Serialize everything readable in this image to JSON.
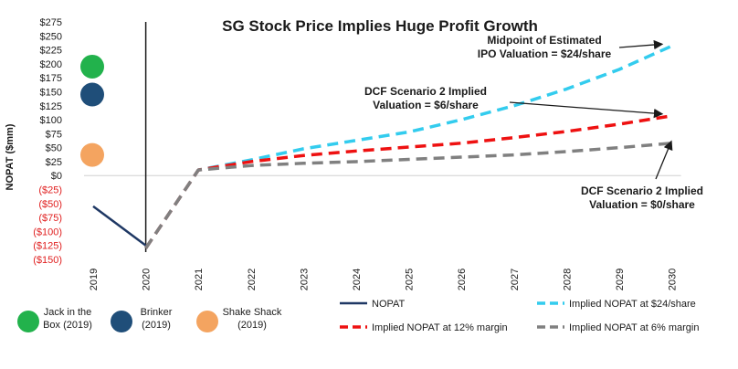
{
  "chart_data": {
    "type": "line",
    "title": "SG Stock Price Implies Huge Profit Growth",
    "ylabel": "NOPAT ($mm)",
    "xlabel": "",
    "x": [
      "2019",
      "2020",
      "2021",
      "2022",
      "2023",
      "2024",
      "2025",
      "2026",
      "2027",
      "2028",
      "2029",
      "2030"
    ],
    "ylim": [
      -150,
      275
    ],
    "yticks": [
      {
        "value": 275,
        "label": "$275"
      },
      {
        "value": 250,
        "label": "$250"
      },
      {
        "value": 225,
        "label": "$225"
      },
      {
        "value": 200,
        "label": "$200"
      },
      {
        "value": 175,
        "label": "$175"
      },
      {
        "value": 150,
        "label": "$150"
      },
      {
        "value": 125,
        "label": "$125"
      },
      {
        "value": 100,
        "label": "$100"
      },
      {
        "value": 75,
        "label": "$75"
      },
      {
        "value": 50,
        "label": "$50"
      },
      {
        "value": 25,
        "label": "$25"
      },
      {
        "value": 0,
        "label": "$0"
      },
      {
        "value": -25,
        "label": "($25)"
      },
      {
        "value": -50,
        "label": "($50)"
      },
      {
        "value": -75,
        "label": "($75)"
      },
      {
        "value": -100,
        "label": "($100)"
      },
      {
        "value": -125,
        "label": "($125)"
      },
      {
        "value": -150,
        "label": "($150)"
      }
    ],
    "series": [
      {
        "name": "NOPAT",
        "color": "#1f3864",
        "dash": "solid",
        "values": [
          -55,
          -125,
          null,
          null,
          null,
          null,
          null,
          null,
          null,
          null,
          null,
          null
        ]
      },
      {
        "name": "Implied NOPAT at $24/share",
        "color": "#33ccee",
        "dash": "dash",
        "values": [
          null,
          -130,
          10,
          28,
          48,
          63,
          78,
          100,
          125,
          155,
          190,
          232
        ]
      },
      {
        "name": "Implied NOPAT at 12% margin",
        "color": "#ee1111",
        "dash": "dash",
        "values": [
          null,
          -130,
          10,
          25,
          36,
          44,
          51,
          58,
          68,
          79,
          92,
          107
        ]
      },
      {
        "name": "Implied NOPAT at 6% margin",
        "color": "#808080",
        "dash": "dash",
        "values": [
          null,
          -130,
          10,
          18,
          22,
          25,
          29,
          33,
          37,
          43,
          50,
          58
        ]
      }
    ],
    "peers": [
      {
        "name": "Jack in the Box (2019)",
        "line1": "Jack in the",
        "line2": "Box (2019)",
        "value": 195,
        "color": "#22b24c"
      },
      {
        "name": "Brinker (2019)",
        "line1": "Brinker",
        "line2": "(2019)",
        "value": 145,
        "color": "#1f4e79"
      },
      {
        "name": "Shake Shack (2019)",
        "line1": "Shake Shack",
        "line2": "(2019)",
        "value": 37,
        "color": "#f4a460"
      }
    ],
    "annotations": [
      {
        "lines": [
          "Midpoint of Estimated",
          "IPO Valuation = $24/share"
        ],
        "x": "2030",
        "y": 232
      },
      {
        "lines": [
          "DCF Scenario 2 Implied",
          "Valuation = $6/share"
        ],
        "x": "2030",
        "y": 107
      },
      {
        "lines": [
          "DCF Scenario 2 Implied",
          "Valuation = $0/share"
        ],
        "x": "2030",
        "y": 58
      }
    ],
    "legend_position": "bottom",
    "positive_tick_color": "#1a1a1a",
    "negative_tick_color": "#e02020"
  }
}
